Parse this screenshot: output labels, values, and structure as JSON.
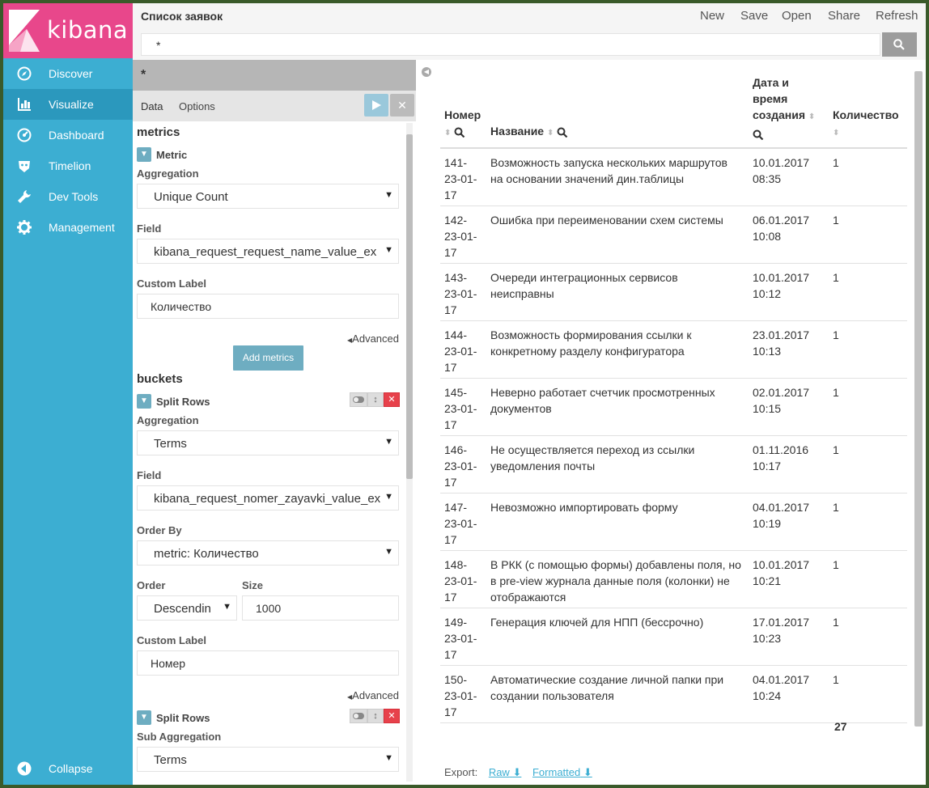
{
  "app": {
    "logo_text": "kibana",
    "colors": {
      "brand": "#e8478b",
      "sidebar": "#3caed2",
      "accent": "#6eadc1",
      "danger": "#e7414b"
    }
  },
  "sidebar": {
    "items": [
      {
        "label": "Discover",
        "icon": "compass-icon"
      },
      {
        "label": "Visualize",
        "icon": "bar-chart-icon",
        "active": true
      },
      {
        "label": "Dashboard",
        "icon": "dashboard-icon"
      },
      {
        "label": "Timelion",
        "icon": "timelion-icon"
      },
      {
        "label": "Dev Tools",
        "icon": "wrench-icon"
      },
      {
        "label": "Management",
        "icon": "gear-icon"
      }
    ],
    "collapse_label": "Collapse"
  },
  "topbar": {
    "title": "Список заявок",
    "menu": {
      "new": "New",
      "save": "Save",
      "open": "Open",
      "share": "Share",
      "refresh": "Refresh"
    }
  },
  "search": {
    "query": "*"
  },
  "editor": {
    "header_query": "*",
    "tabs": {
      "data": "Data",
      "options": "Options"
    },
    "metrics_title": "metrics",
    "metric": {
      "title": "Metric",
      "aggregation_label": "Aggregation",
      "aggregation": "Unique Count",
      "field_label": "Field",
      "field": "kibana_request_request_name_value_ex",
      "custom_label_label": "Custom Label",
      "custom_label": "Количество",
      "advanced": "Advanced"
    },
    "add_metrics": "Add metrics",
    "buckets_title": "buckets",
    "split_rows_1": {
      "title": "Split Rows",
      "aggregation_label": "Aggregation",
      "aggregation": "Terms",
      "field_label": "Field",
      "field": "kibana_request_nomer_zayavki_value_ex",
      "order_by_label": "Order By",
      "order_by": "metric: Количество",
      "order_label": "Order",
      "order": "Descendin",
      "size_label": "Size",
      "size": "1000",
      "custom_label_label": "Custom Label",
      "custom_label": "Номер",
      "advanced": "Advanced"
    },
    "split_rows_2": {
      "title": "Split Rows",
      "sub_aggregation_label": "Sub Aggregation",
      "sub_aggregation": "Terms"
    }
  },
  "table": {
    "headers": {
      "number": "Номер",
      "name": "Название",
      "date_l1": "Дата и",
      "date_l2": "время",
      "date_l3": "создания",
      "count": "Количество"
    },
    "rows": [
      {
        "num": [
          "141-",
          "23-01-",
          "17"
        ],
        "name": [
          "Возможность запуска нескольких маршрутов",
          "на основании значений дин.таблицы"
        ],
        "date": [
          "10.01.2017",
          "08:35"
        ],
        "count": "1"
      },
      {
        "num": [
          "142-",
          "23-01-",
          "17"
        ],
        "name": [
          "Ошибка при переименовании схем системы"
        ],
        "date": [
          "06.01.2017",
          "10:08"
        ],
        "count": "1"
      },
      {
        "num": [
          "143-",
          "23-01-",
          "17"
        ],
        "name": [
          "Очереди интеграционных сервисов",
          "неисправны"
        ],
        "date": [
          "10.01.2017",
          "10:12"
        ],
        "count": "1"
      },
      {
        "num": [
          "144-",
          "23-01-",
          "17"
        ],
        "name": [
          "Возможность формирования ссылки к",
          "конкретному разделу конфигуратора"
        ],
        "date": [
          "23.01.2017",
          "10:13"
        ],
        "count": "1"
      },
      {
        "num": [
          "145-",
          "23-01-",
          "17"
        ],
        "name": [
          "Неверно работает счетчик просмотренных",
          "документов"
        ],
        "date": [
          "02.01.2017",
          "10:15"
        ],
        "count": "1"
      },
      {
        "num": [
          "146-",
          "23-01-",
          "17"
        ],
        "name": [
          "Не осуществляется переход из ссылки",
          "уведомления почты"
        ],
        "date": [
          "01.11.2016",
          "10:17"
        ],
        "count": "1"
      },
      {
        "num": [
          "147-",
          "23-01-",
          "17"
        ],
        "name": [
          "Невозможно импортировать форму"
        ],
        "date": [
          "04.01.2017",
          "10:19"
        ],
        "count": "1"
      },
      {
        "num": [
          "148-",
          "23-01-",
          "17"
        ],
        "name": [
          "В РКК (с помощью формы) добавлены поля, но",
          "в pre-view журнала данные поля (колонки) не",
          "отображаются"
        ],
        "date": [
          "10.01.2017",
          "10:21"
        ],
        "count": "1"
      },
      {
        "num": [
          "149-",
          "23-01-",
          "17"
        ],
        "name": [
          "Генерация ключей для НПП (бессрочно)"
        ],
        "date": [
          "17.01.2017",
          "10:23"
        ],
        "count": "1"
      },
      {
        "num": [
          "150-",
          "23-01-",
          "17"
        ],
        "name": [
          "Автоматические создание личной папки при",
          "создании пользователя"
        ],
        "date": [
          "04.01.2017",
          "10:24"
        ],
        "count": "1"
      }
    ],
    "total": "27"
  },
  "export": {
    "label": "Export:",
    "raw": "Raw",
    "formatted": "Formatted"
  }
}
